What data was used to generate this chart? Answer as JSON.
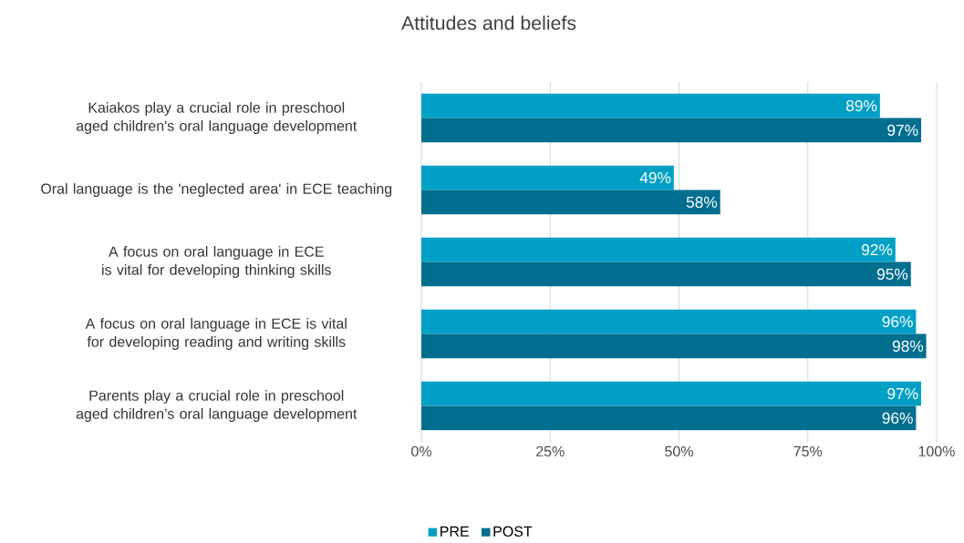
{
  "chart_data": {
    "type": "bar",
    "orientation": "horizontal",
    "title": "Attitudes and beliefs",
    "categories": [
      "Kaiakos play a crucial role in preschool aged children's oral language development",
      "Oral language is the 'neglected area' in ECE teaching",
      "A focus on oral language in ECE is vital for developing thinking skills",
      "A focus on oral language in ECE is vital for developing reading and writing skills",
      "Parents play a crucial role in preschool aged children’s oral language development"
    ],
    "series": [
      {
        "name": "PRE",
        "color": "#00a0c6",
        "values": [
          89,
          49,
          92,
          96,
          97
        ],
        "value_labels": [
          "89%",
          "49%",
          "92%",
          "96%",
          "97%"
        ]
      },
      {
        "name": "POST",
        "color": "#006e8f",
        "values": [
          97,
          58,
          95,
          98,
          96
        ],
        "value_labels": [
          "97%",
          "58%",
          "95%",
          "98%",
          "96%"
        ]
      }
    ],
    "xlim": [
      0,
      100
    ],
    "xticks": [
      {
        "value": 0,
        "label": "0%"
      },
      {
        "value": 25,
        "label": "25%"
      },
      {
        "value": 50,
        "label": "50%"
      },
      {
        "value": 75,
        "label": "75%"
      },
      {
        "value": 100,
        "label": "100%"
      }
    ],
    "grid": "x",
    "legend": "bottom"
  }
}
